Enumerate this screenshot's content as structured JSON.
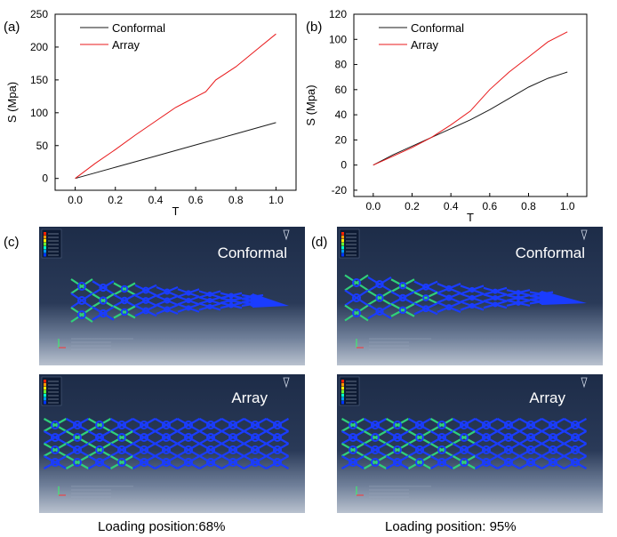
{
  "panels": {
    "a": "(a)",
    "b": "(b)",
    "c": "(c)",
    "d": "(d)"
  },
  "chart_data": [
    {
      "type": "line",
      "xlabel": "T",
      "ylabel": "S (Mpa)",
      "xlim": [
        -0.1,
        1.1
      ],
      "ylim": [
        -18,
        250
      ],
      "xticks": [
        "0.0",
        "0.2",
        "0.4",
        "0.6",
        "0.8",
        "1.0"
      ],
      "yticks": [
        "0",
        "50",
        "100",
        "150",
        "200",
        "250"
      ],
      "legend_position": "top-left",
      "series": [
        {
          "name": "Conformal",
          "color": "#1a1a1a",
          "x": [
            0.0,
            0.2,
            0.4,
            0.6,
            0.8,
            1.0
          ],
          "y": [
            0,
            17,
            34,
            51,
            68,
            85
          ]
        },
        {
          "name": "Array",
          "color": "#e8191b",
          "x": [
            0.0,
            0.1,
            0.2,
            0.3,
            0.4,
            0.5,
            0.55,
            0.6,
            0.65,
            0.7,
            0.8,
            0.9,
            1.0
          ],
          "y": [
            0,
            23,
            44,
            66,
            87,
            108,
            116,
            124,
            132,
            150,
            170,
            195,
            220
          ]
        }
      ]
    },
    {
      "type": "line",
      "xlabel": "T",
      "ylabel": "S (Mpa)",
      "xlim": [
        -0.1,
        1.1
      ],
      "ylim": [
        -25,
        120
      ],
      "xticks": [
        "0.0",
        "0.2",
        "0.4",
        "0.6",
        "0.8",
        "1.0"
      ],
      "yticks": [
        "-20",
        "0",
        "20",
        "40",
        "60",
        "80",
        "100",
        "120"
      ],
      "legend_position": "top-left",
      "series": [
        {
          "name": "Conformal",
          "color": "#1a1a1a",
          "x": [
            0.0,
            0.1,
            0.2,
            0.3,
            0.4,
            0.5,
            0.6,
            0.7,
            0.8,
            0.9,
            1.0
          ],
          "y": [
            0,
            8,
            15,
            22,
            29,
            36,
            44,
            53,
            62,
            69,
            74
          ]
        },
        {
          "name": "Array",
          "color": "#e8191b",
          "x": [
            0.0,
            0.1,
            0.2,
            0.3,
            0.4,
            0.5,
            0.6,
            0.7,
            0.8,
            0.9,
            1.0
          ],
          "y": [
            0,
            7,
            14,
            22,
            32,
            43,
            60,
            74,
            86,
            98,
            106
          ]
        }
      ]
    }
  ],
  "simulations": [
    {
      "title": "Conformal"
    },
    {
      "title": "Array"
    },
    {
      "title": "Conformal"
    },
    {
      "title": "Array"
    }
  ],
  "captions": {
    "left": "Loading position:68%",
    "right": "Loading position: 95%"
  }
}
